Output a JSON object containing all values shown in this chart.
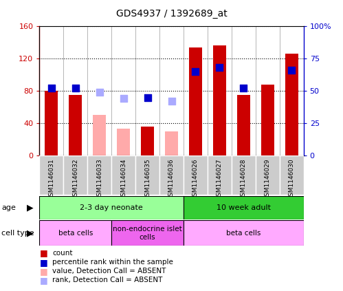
{
  "title": "GDS4937 / 1392689_at",
  "samples": [
    "GSM1146031",
    "GSM1146032",
    "GSM1146033",
    "GSM1146034",
    "GSM1146035",
    "GSM1146036",
    "GSM1146026",
    "GSM1146027",
    "GSM1146028",
    "GSM1146029",
    "GSM1146030"
  ],
  "count_values": [
    80,
    75,
    null,
    null,
    36,
    null,
    134,
    136,
    75,
    88,
    126
  ],
  "count_absent": [
    null,
    null,
    50,
    33,
    null,
    30,
    null,
    null,
    null,
    null,
    null
  ],
  "rank_values": [
    52,
    52,
    null,
    null,
    45,
    null,
    65,
    68,
    52,
    null,
    66
  ],
  "rank_absent": [
    null,
    null,
    49,
    44,
    null,
    42,
    null,
    null,
    null,
    null,
    null
  ],
  "count_color": "#cc0000",
  "count_absent_color": "#ffaaaa",
  "rank_color": "#0000cc",
  "rank_absent_color": "#aaaaff",
  "ylim_left": [
    0,
    160
  ],
  "ylim_right": [
    0,
    100
  ],
  "yticks_left": [
    0,
    40,
    80,
    120,
    160
  ],
  "ytick_labels_left": [
    "0",
    "40",
    "80",
    "120",
    "160"
  ],
  "yticks_right": [
    0,
    25,
    50,
    75,
    100
  ],
  "ytick_labels_right": [
    "0",
    "25",
    "50",
    "75",
    "100%"
  ],
  "ylabel_left_color": "#cc0000",
  "ylabel_right_color": "#0000cc",
  "bar_width": 0.55,
  "dot_size": 55,
  "age_groups": [
    {
      "label": "2-3 day neonate",
      "start": 0,
      "end": 6,
      "color": "#99ff99"
    },
    {
      "label": "10 week adult",
      "start": 6,
      "end": 11,
      "color": "#33cc33"
    }
  ],
  "cell_type_groups": [
    {
      "label": "beta cells",
      "start": 0,
      "end": 3,
      "color": "#ffaaff"
    },
    {
      "label": "non-endocrine islet\ncells",
      "start": 3,
      "end": 6,
      "color": "#ee66ee"
    },
    {
      "label": "beta cells",
      "start": 6,
      "end": 11,
      "color": "#ffaaff"
    }
  ],
  "legend_items": [
    {
      "color": "#cc0000",
      "label": "count"
    },
    {
      "color": "#0000cc",
      "label": "percentile rank within the sample"
    },
    {
      "color": "#ffaaaa",
      "label": "value, Detection Call = ABSENT"
    },
    {
      "color": "#aaaaff",
      "label": "rank, Detection Call = ABSENT"
    }
  ],
  "grid_color": "black",
  "sample_box_color": "#cccccc",
  "plot_bg": "#ffffff"
}
